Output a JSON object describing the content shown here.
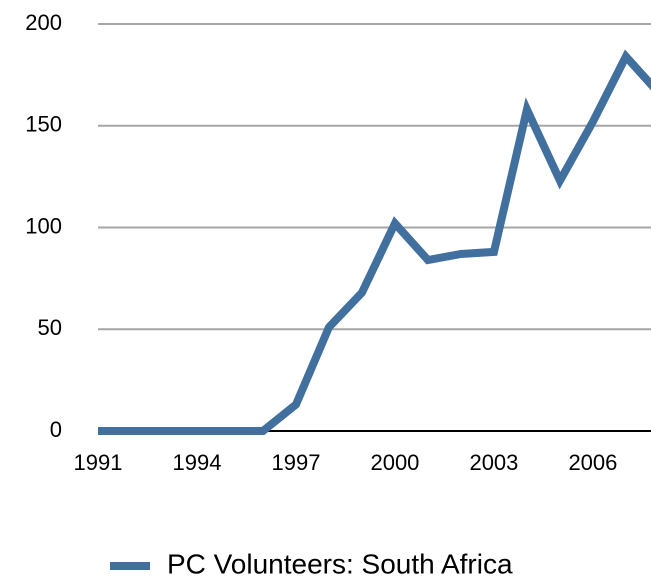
{
  "chart_data": {
    "type": "line",
    "x": [
      1991,
      1992,
      1993,
      1994,
      1995,
      1996,
      1997,
      1998,
      1999,
      2000,
      2001,
      2002,
      2003,
      2004,
      2005,
      2006,
      2007,
      2008
    ],
    "series": [
      {
        "name": "PC Volunteers: South Africa",
        "color": "#41709f",
        "values": [
          0,
          0,
          0,
          0,
          0,
          0,
          13,
          51,
          68,
          102,
          84,
          87,
          88,
          158,
          123,
          152,
          184,
          166
        ]
      }
    ],
    "xlim": [
      1991,
      2007.76
    ],
    "xticks": [
      1991,
      1994,
      1997,
      2000,
      2003,
      2006
    ],
    "ylim": [
      0,
      200
    ],
    "yticks": [
      0,
      50,
      100,
      150,
      200
    ],
    "grid": true,
    "legend": "bottom"
  }
}
